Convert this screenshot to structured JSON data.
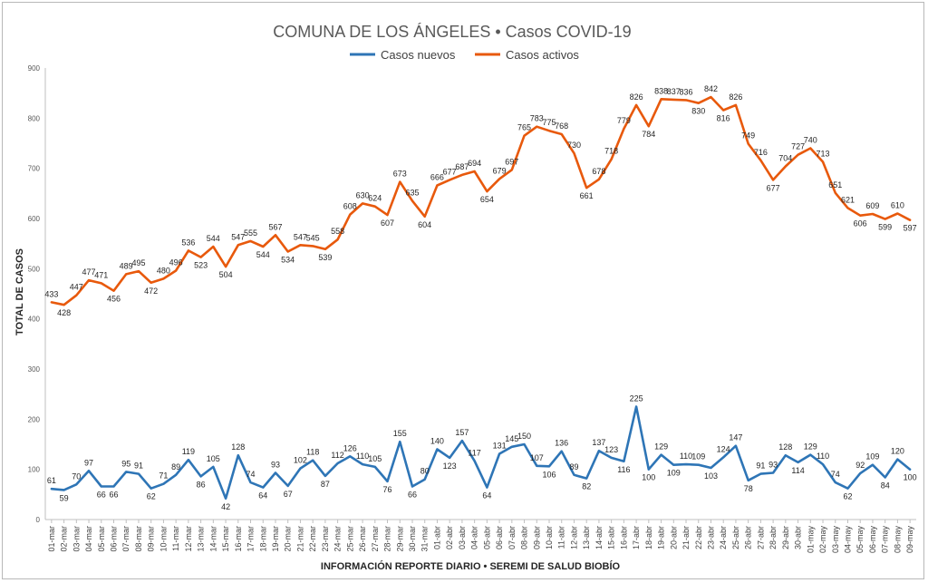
{
  "chart_data": {
    "type": "line",
    "title": "COMUNA DE LOS ÁNGELES • Casos COVID-19",
    "xlabel": "INFORMACIÓN REPORTE DIARIO • SEREMI DE SALUD BIOBÍO",
    "ylabel": "TOTAL DE CASOS",
    "ylim": [
      0,
      900
    ],
    "yticks": [
      0,
      100,
      200,
      300,
      400,
      500,
      600,
      700,
      800,
      900
    ],
    "grid": false,
    "legend": "top",
    "categories": [
      "01-mar",
      "02-mar",
      "03-mar",
      "04-mar",
      "05-mar",
      "06-mar",
      "07-mar",
      "08-mar",
      "09-mar",
      "10-mar",
      "11-mar",
      "12-mar",
      "13-mar",
      "14-mar",
      "15-mar",
      "16-mar",
      "17-mar",
      "18-mar",
      "19-mar",
      "20-mar",
      "21-mar",
      "22-mar",
      "23-mar",
      "24-mar",
      "25-mar",
      "26-mar",
      "27-mar",
      "28-mar",
      "29-mar",
      "30-mar",
      "31-mar",
      "01-abr",
      "02-abr",
      "03-abr",
      "04-abr",
      "05-abr",
      "06-abr",
      "07-abr",
      "08-abr",
      "09-abr",
      "10-abr",
      "11-abr",
      "12-abr",
      "13-abr",
      "14-abr",
      "15-abr",
      "16-abr",
      "17-abr",
      "18-abr",
      "19-abr",
      "20-abr",
      "21-abr",
      "22-abr",
      "23-abr",
      "24-abr",
      "25-abr",
      "26-abr",
      "27-abr",
      "28-abr",
      "29-abr",
      "30-abr",
      "01-may",
      "02-may",
      "03-may",
      "04-may",
      "05-may",
      "06-may",
      "07-may",
      "08-may",
      "09-may"
    ],
    "series": [
      {
        "name": "Casos nuevos",
        "color": "#2e75b6",
        "values": [
          61,
          59,
          70,
          97,
          66,
          66,
          95,
          91,
          62,
          71,
          89,
          119,
          86,
          105,
          42,
          128,
          74,
          64,
          93,
          67,
          102,
          118,
          87,
          112,
          126,
          110,
          105,
          76,
          155,
          66,
          80,
          140,
          123,
          157,
          117,
          64,
          131,
          145,
          150,
          107,
          106,
          136,
          89,
          82,
          137,
          123,
          116,
          225,
          100,
          129,
          109,
          110,
          109,
          103,
          124,
          147,
          78,
          91,
          93,
          128,
          114,
          129,
          110,
          74,
          62,
          92,
          109,
          84,
          120,
          100
        ]
      },
      {
        "name": "Casos activos",
        "color": "#e8590c",
        "values": [
          433,
          428,
          447,
          477,
          471,
          456,
          489,
          495,
          472,
          480,
          496,
          536,
          523,
          544,
          504,
          547,
          555,
          544,
          567,
          534,
          547,
          545,
          539,
          558,
          608,
          630,
          624,
          607,
          673,
          635,
          604,
          666,
          677,
          687,
          694,
          654,
          679,
          697,
          765,
          783,
          775,
          768,
          730,
          661,
          678,
          718,
          779,
          826,
          784,
          838,
          837,
          836,
          830,
          842,
          816,
          826,
          749,
          716,
          677,
          704,
          727,
          740,
          713,
          651,
          621,
          606,
          609,
          599,
          610,
          597
        ]
      }
    ]
  }
}
